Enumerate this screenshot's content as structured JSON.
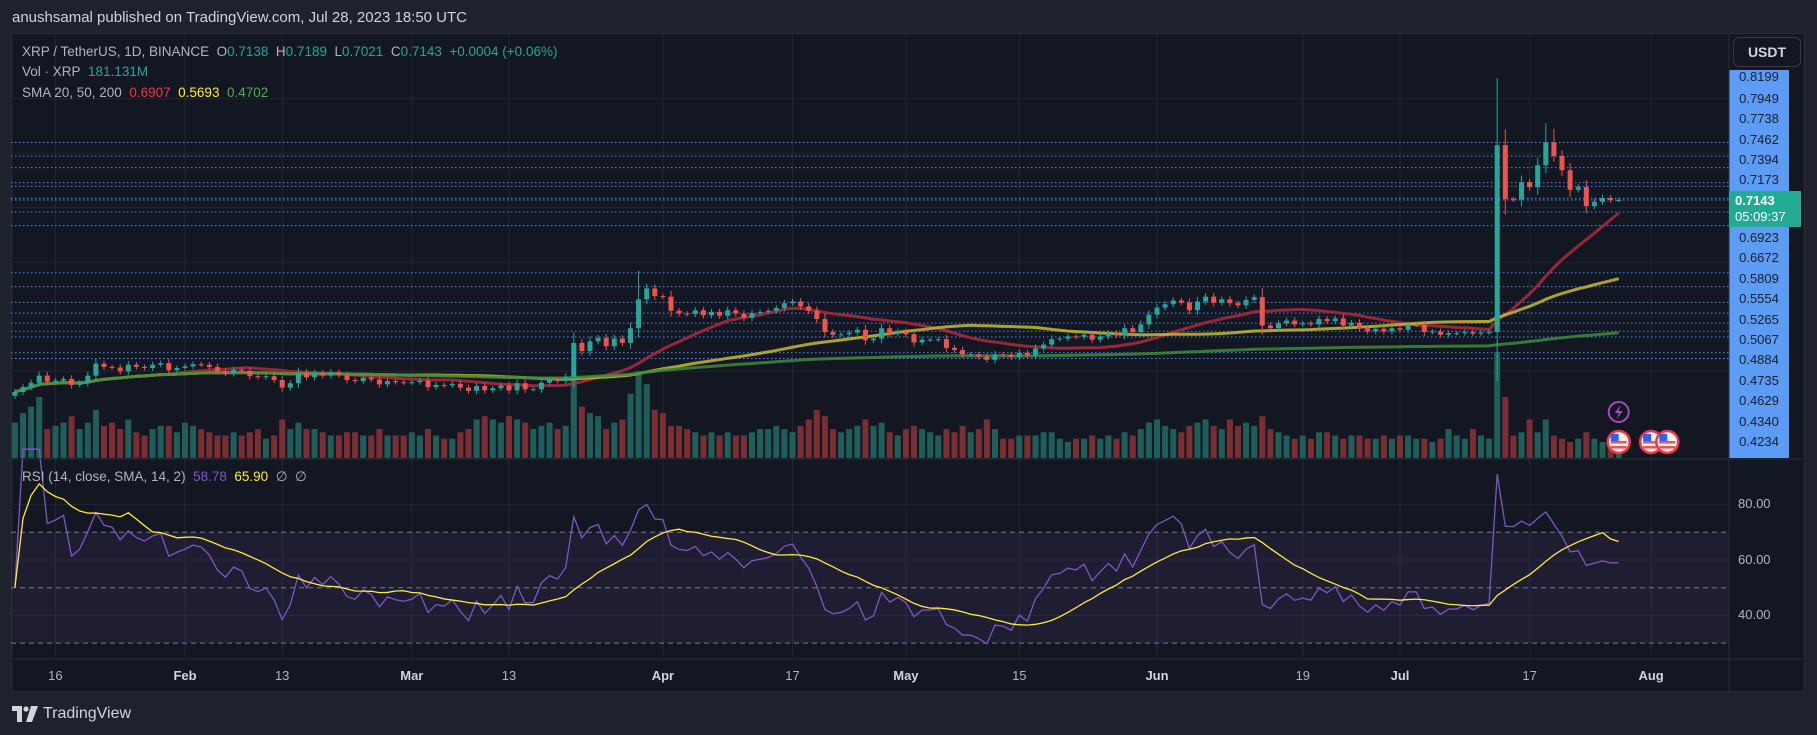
{
  "header": {
    "published": "anushsamal published on TradingView.com, Jul 28, 2023 18:50 UTC"
  },
  "legend": {
    "symbol": "XRP / TetherUS, 1D, BINANCE",
    "open_label": "O",
    "open": "0.7138",
    "high_label": "H",
    "high": "0.7189",
    "low_label": "L",
    "low": "0.7021",
    "close_label": "C",
    "close": "0.7143",
    "change": "+0.0004 (+0.06%)",
    "vol_label": "Vol · XRP",
    "vol": "181.131M",
    "sma_label": "SMA 20, 50, 200",
    "sma20": "0.6907",
    "sma50": "0.5693",
    "sma200": "0.4702"
  },
  "rsi_legend": {
    "label": "RSI (14, close, SMA, 14, 2)",
    "rsi": "58.78",
    "rsi_sma": "65.90",
    "extra1": "∅",
    "extra2": "∅"
  },
  "currency_button": "USDT",
  "current_price": {
    "value": "0.7143",
    "countdown": "05:09:37"
  },
  "price_axis_labels": [
    "0.8199",
    "0.7949",
    "0.7738",
    "0.7462",
    "0.7394",
    "0.7173",
    "0.6923",
    "0.6672",
    "0.5809",
    "0.5554",
    "0.5265",
    "0.5067",
    "0.4884",
    "0.4735",
    "0.4629",
    "0.4340",
    "0.4234"
  ],
  "rsi_axis_labels": [
    "80.00",
    "60.00",
    "40.00"
  ],
  "time_axis_labels": [
    {
      "label": "16",
      "date": "2023-01-16",
      "month": false
    },
    {
      "label": "Feb",
      "date": "2023-02-01",
      "month": true
    },
    {
      "label": "13",
      "date": "2023-02-13",
      "month": false
    },
    {
      "label": "Mar",
      "date": "2023-03-01",
      "month": true
    },
    {
      "label": "13",
      "date": "2023-03-13",
      "month": false
    },
    {
      "label": "Apr",
      "date": "2023-04-01",
      "month": true
    },
    {
      "label": "17",
      "date": "2023-04-17",
      "month": false
    },
    {
      "label": "May",
      "date": "2023-05-01",
      "month": true
    },
    {
      "label": "15",
      "date": "2023-05-15",
      "month": false
    },
    {
      "label": "Jun",
      "date": "2023-06-01",
      "month": true
    },
    {
      "label": "19",
      "date": "2023-06-19",
      "month": false
    },
    {
      "label": "Jul",
      "date": "2023-07-01",
      "month": true
    },
    {
      "label": "17",
      "date": "2023-07-17",
      "month": false
    },
    {
      "label": "Aug",
      "date": "2023-08-01",
      "month": true
    }
  ],
  "brand": "TradingView",
  "events": [
    {
      "type": "lightning-icon",
      "date": "2023-07-28"
    },
    {
      "type": "us-flag-icon",
      "date": "2023-07-28"
    },
    {
      "type": "us-flag-icon",
      "date": "2023-08-01"
    },
    {
      "type": "us-flag-icon",
      "date": "2023-08-03"
    }
  ],
  "colors": {
    "up": "#26a69a",
    "down": "#ef5350",
    "sma20": "#b2283d",
    "sma50": "#c7bb2e",
    "sma200": "#3d8b3a",
    "rsi": "#7e57c2",
    "rsi_sma": "#ffeb3b",
    "price_axis": "#5d9cf5",
    "drawn_lines": "#4d8cf5"
  },
  "chart_data": {
    "type": "candlestick",
    "start_date": "2023-01-11",
    "end_date": "2023-07-28",
    "closes": [
      0.362,
      0.371,
      0.379,
      0.392,
      0.381,
      0.383,
      0.386,
      0.375,
      0.379,
      0.392,
      0.414,
      0.408,
      0.407,
      0.4,
      0.412,
      0.408,
      0.406,
      0.412,
      0.415,
      0.402,
      0.406,
      0.409,
      0.413,
      0.412,
      0.408,
      0.4,
      0.396,
      0.403,
      0.401,
      0.391,
      0.389,
      0.391,
      0.384,
      0.37,
      0.378,
      0.398,
      0.389,
      0.397,
      0.392,
      0.398,
      0.393,
      0.384,
      0.382,
      0.388,
      0.385,
      0.376,
      0.382,
      0.38,
      0.379,
      0.38,
      0.383,
      0.371,
      0.375,
      0.374,
      0.377,
      0.37,
      0.364,
      0.373,
      0.365,
      0.369,
      0.374,
      0.365,
      0.378,
      0.367,
      0.367,
      0.379,
      0.384,
      0.382,
      0.39,
      0.452,
      0.437,
      0.455,
      0.461,
      0.446,
      0.46,
      0.452,
      0.479,
      0.532,
      0.552,
      0.538,
      0.537,
      0.511,
      0.506,
      0.505,
      0.512,
      0.503,
      0.509,
      0.502,
      0.512,
      0.506,
      0.498,
      0.507,
      0.509,
      0.511,
      0.516,
      0.525,
      0.528,
      0.519,
      0.511,
      0.496,
      0.472,
      0.467,
      0.468,
      0.471,
      0.476,
      0.457,
      0.46,
      0.479,
      0.469,
      0.473,
      0.468,
      0.453,
      0.458,
      0.458,
      0.459,
      0.443,
      0.439,
      0.431,
      0.431,
      0.427,
      0.421,
      0.431,
      0.43,
      0.426,
      0.434,
      0.429,
      0.442,
      0.449,
      0.459,
      0.46,
      0.464,
      0.463,
      0.467,
      0.458,
      0.464,
      0.47,
      0.466,
      0.479,
      0.472,
      0.486,
      0.504,
      0.517,
      0.523,
      0.53,
      0.526,
      0.512,
      0.528,
      0.537,
      0.526,
      0.532,
      0.525,
      0.521,
      0.531,
      0.536,
      0.484,
      0.479,
      0.488,
      0.493,
      0.486,
      0.488,
      0.486,
      0.496,
      0.492,
      0.497,
      0.484,
      0.489,
      0.479,
      0.473,
      0.478,
      0.473,
      0.479,
      0.476,
      0.485,
      0.485,
      0.472,
      0.473,
      0.467,
      0.47,
      0.47,
      0.472,
      0.469,
      0.471,
      0.472,
      0.815,
      0.716,
      0.715,
      0.747,
      0.738,
      0.778,
      0.82,
      0.795,
      0.769,
      0.733,
      0.738,
      0.703,
      0.711,
      0.718,
      0.714,
      0.7143
    ],
    "high_overrides": {
      "2023-07-13": 0.938,
      "2023-07-19": 0.855,
      "2023-07-20": 0.845,
      "2023-03-29": 0.585
    },
    "volumes_millions": [
      1100,
      1400,
      1600,
      1900,
      900,
      1000,
      1100,
      1300,
      900,
      1100,
      1500,
      1000,
      1100,
      900,
      1200,
      800,
      700,
      900,
      1000,
      1000,
      800,
      1100,
      1000,
      900,
      800,
      700,
      700,
      800,
      700,
      800,
      900,
      600,
      700,
      1200,
      900,
      1100,
      900,
      900,
      800,
      700,
      700,
      800,
      800,
      700,
      700,
      900,
      700,
      700,
      700,
      800,
      700,
      900,
      700,
      600,
      600,
      800,
      900,
      1200,
      1300,
      1200,
      1100,
      1300,
      1200,
      1100,
      900,
      1000,
      1100,
      900,
      1000,
      2600,
      1600,
      1400,
      1300,
      900,
      1100,
      1200,
      2000,
      2700,
      2300,
      1500,
      1400,
      1000,
      1000,
      900,
      800,
      700,
      800,
      700,
      800,
      700,
      700,
      800,
      900,
      900,
      1000,
      900,
      800,
      1000,
      1200,
      1500,
      1300,
      900,
      800,
      900,
      1000,
      1200,
      1000,
      1100,
      800,
      700,
      900,
      1000,
      900,
      800,
      700,
      900,
      800,
      1000,
      800,
      900,
      1200,
      900,
      600,
      600,
      700,
      700,
      700,
      800,
      800,
      600,
      500,
      600,
      600,
      700,
      600,
      700,
      600,
      800,
      700,
      900,
      1100,
      1200,
      1000,
      900,
      800,
      1000,
      1100,
      1200,
      1000,
      900,
      1200,
      1000,
      1100,
      1000,
      1300,
      900,
      800,
      700,
      600,
      700,
      600,
      800,
      800,
      700,
      600,
      700,
      700,
      600,
      600,
      700,
      600,
      700,
      700,
      600,
      600,
      500,
      600,
      900,
      700,
      600,
      900,
      700,
      600,
      3300,
      1900,
      700,
      800,
      1200,
      800,
      1200,
      700,
      600,
      500,
      600,
      800,
      600,
      500,
      400,
      300
    ],
    "sma_periods": [
      20,
      50,
      200
    ],
    "rsi": {
      "period": 14,
      "sma_period": 14,
      "upper": 70,
      "middle": 50,
      "lower": 30
    },
    "horizontal_lines": [
      0.8199,
      0.7949,
      0.7738,
      0.7462,
      0.7394,
      0.7173,
      0.7143,
      0.6923,
      0.6672,
      0.5809,
      0.5554,
      0.5265,
      0.5067,
      0.4884,
      0.4735,
      0.4629,
      0.434,
      0.4234
    ]
  }
}
